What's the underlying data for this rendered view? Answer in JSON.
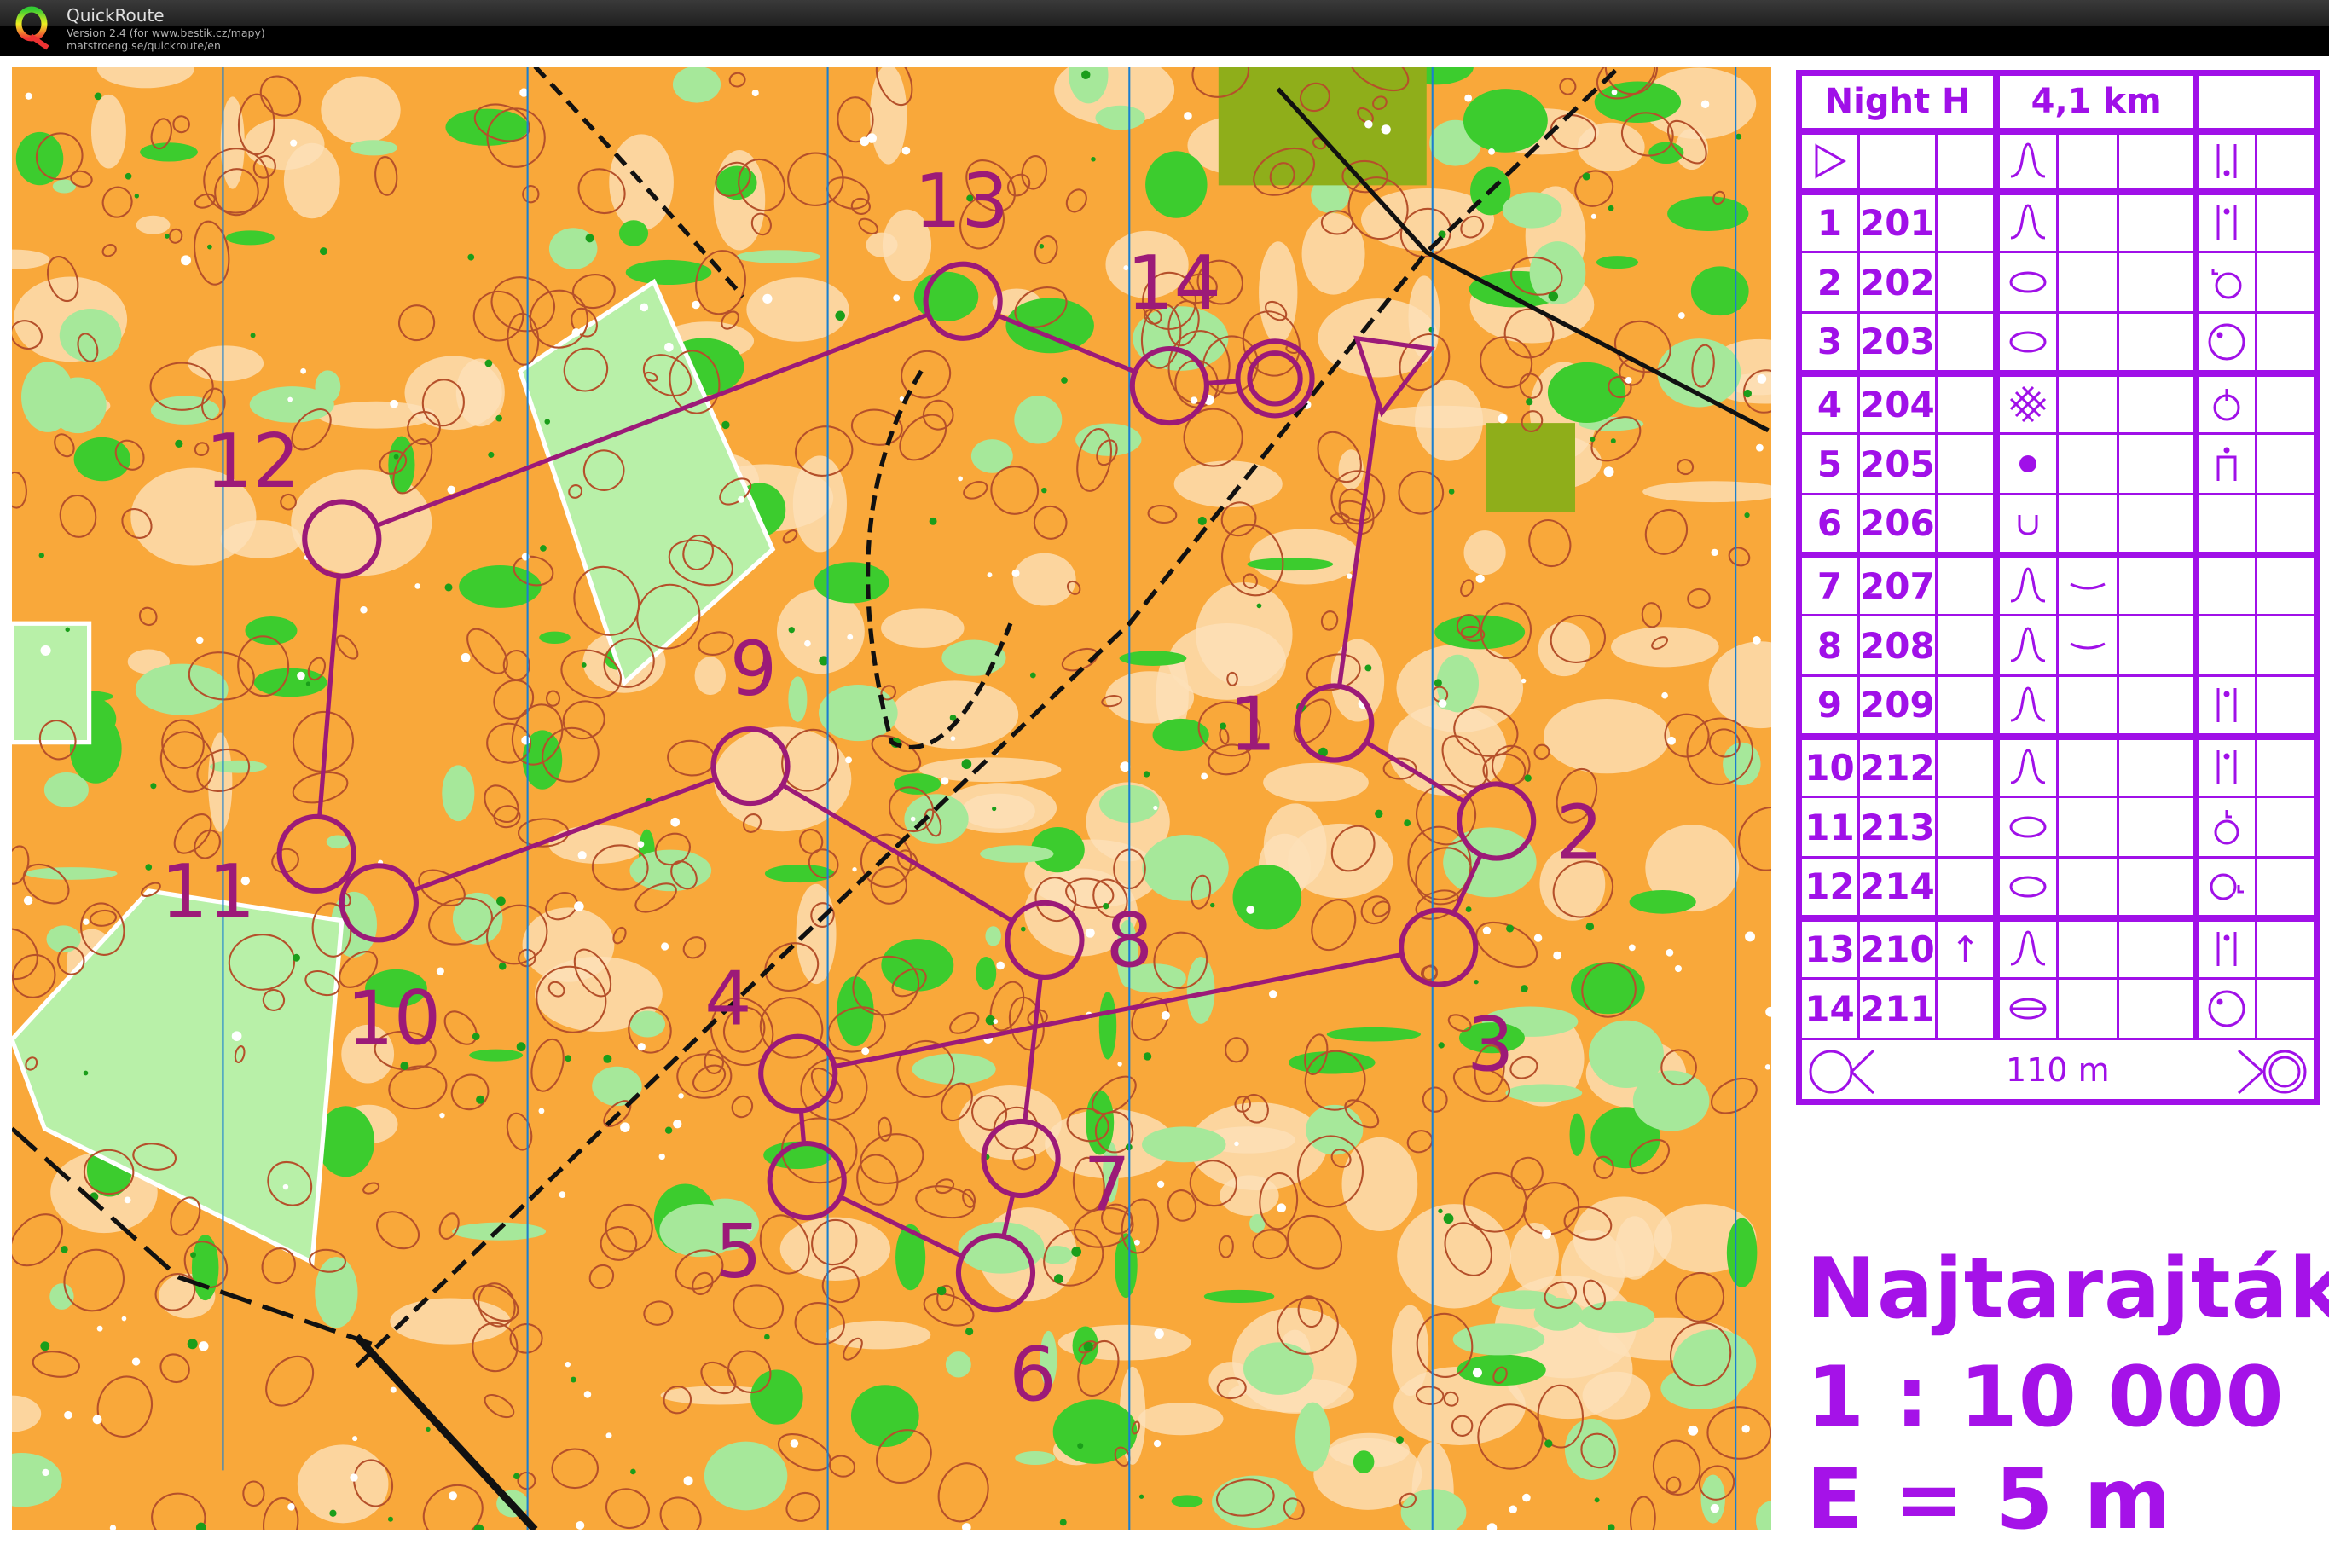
{
  "app": {
    "title": "QuickRoute",
    "version": "Version 2.4  (for www.bestik.cz/mapy)",
    "url": "matstroeng.se/quickroute/en"
  },
  "colors": {
    "course": "#9c1a78",
    "descriptions": "#a010e8",
    "open_land": "#f9a83a",
    "forest_green": "#3ccc2e",
    "contours": "#a0522d"
  },
  "course": {
    "controls": [
      {
        "label": "1"
      },
      {
        "label": "2"
      },
      {
        "label": "3"
      },
      {
        "label": "4"
      },
      {
        "label": "5"
      },
      {
        "label": "6"
      },
      {
        "label": "7"
      },
      {
        "label": "8"
      },
      {
        "label": "9"
      },
      {
        "label": "10"
      },
      {
        "label": "11"
      },
      {
        "label": "12"
      },
      {
        "label": "13"
      },
      {
        "label": "14"
      }
    ]
  },
  "descriptions": {
    "class": "Night H",
    "length": "4,1 km",
    "footer": "110 m",
    "start": {
      "symbol": "start-triangle",
      "feature": "knoll",
      "position": "foot"
    },
    "rows": [
      {
        "num": "1",
        "code": "201",
        "dir": "",
        "feature": "knoll",
        "detail": "",
        "position": "top"
      },
      {
        "num": "2",
        "code": "202",
        "dir": "",
        "feature": "oval",
        "detail": "",
        "position": "nw-foot"
      },
      {
        "num": "3",
        "code": "203",
        "dir": "",
        "feature": "oval",
        "detail": "",
        "position": "nw-part"
      },
      {
        "num": "4",
        "code": "204",
        "dir": "",
        "feature": "thicket",
        "detail": "",
        "position": "n-edge"
      },
      {
        "num": "5",
        "code": "205",
        "dir": "",
        "feature": "boulder",
        "detail": "",
        "position": "top-between"
      },
      {
        "num": "6",
        "code": "206",
        "dir": "",
        "feature": "pit",
        "detail": "",
        "position": ""
      },
      {
        "num": "7",
        "code": "207",
        "dir": "",
        "feature": "knoll",
        "detail": "shallow",
        "position": ""
      },
      {
        "num": "8",
        "code": "208",
        "dir": "",
        "feature": "knoll",
        "detail": "shallow",
        "position": ""
      },
      {
        "num": "9",
        "code": "209",
        "dir": "",
        "feature": "knoll",
        "detail": "",
        "position": "top"
      },
      {
        "num": "10",
        "code": "212",
        "dir": "",
        "feature": "knoll",
        "detail": "",
        "position": "top"
      },
      {
        "num": "11",
        "code": "213",
        "dir": "",
        "feature": "oval",
        "detail": "",
        "position": "n-foot"
      },
      {
        "num": "12",
        "code": "214",
        "dir": "",
        "feature": "oval",
        "detail": "",
        "position": "e-foot"
      },
      {
        "num": "13",
        "code": "210",
        "dir": "↑",
        "feature": "knoll",
        "detail": "",
        "position": "top"
      },
      {
        "num": "14",
        "code": "211",
        "dir": "",
        "feature": "saddle-oval",
        "detail": "",
        "position": "nw-part"
      }
    ]
  },
  "map_title": {
    "name": "Najtarajták",
    "scale": "1 : 10 000",
    "contour": "E = 5 m"
  }
}
